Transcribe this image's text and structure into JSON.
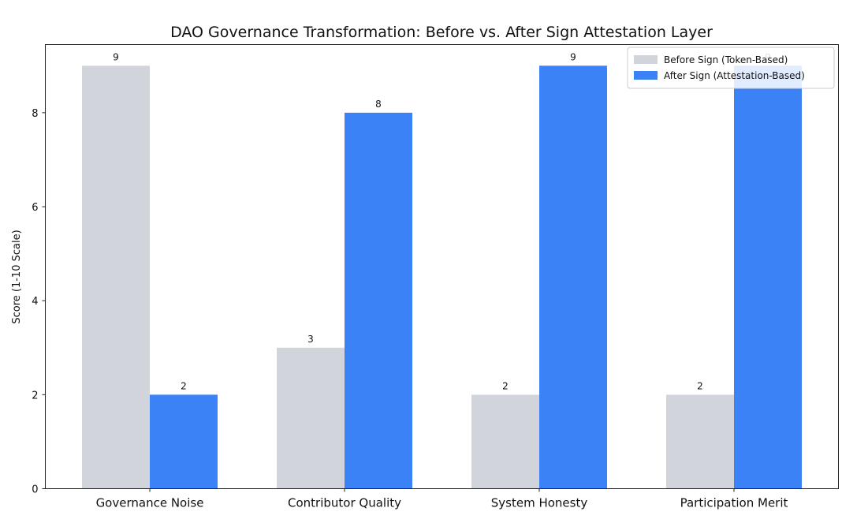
{
  "chart_data": {
    "type": "bar",
    "title": "DAO Governance Transformation: Before vs. After Sign Attestation Layer",
    "xlabel": "",
    "ylabel": "Score (1-10 Scale)",
    "ylim": [
      0,
      9.45
    ],
    "yticks": [
      0,
      2,
      4,
      6,
      8
    ],
    "grid": false,
    "legend_position": "top-right",
    "categories": [
      "Governance Noise",
      "Contributor Quality",
      "System Honesty",
      "Participation Merit"
    ],
    "series": [
      {
        "name": "Before Sign (Token-Based)",
        "values": [
          9,
          3,
          2,
          2
        ],
        "color": "#d1d5db"
      },
      {
        "name": "After Sign (Attestation-Based)",
        "values": [
          2,
          8,
          9,
          9
        ],
        "color": "#3b82f6"
      }
    ]
  }
}
